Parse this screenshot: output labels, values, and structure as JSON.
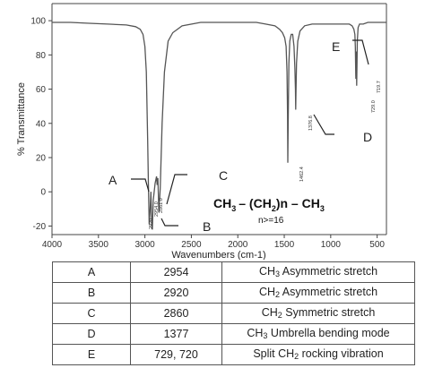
{
  "chart_data": {
    "type": "line",
    "xlabel": "Wavenumbers (cm-1)",
    "ylabel": "% Transmittance",
    "xlim": [
      4000,
      400
    ],
    "ylim": [
      -25,
      110
    ],
    "x_reversed": true,
    "x_ticks": [
      4000,
      3500,
      3000,
      2500,
      2000,
      1500,
      1000,
      500
    ],
    "y_ticks": [
      -20,
      0,
      20,
      40,
      60,
      80,
      100
    ],
    "grid": false,
    "series": [
      {
        "x": [
          4000,
          3800,
          3600,
          3400,
          3200,
          3100,
          3050,
          3020,
          3000,
          2985,
          2970,
          2962,
          2954,
          2945,
          2935,
          2925,
          2920,
          2910,
          2890,
          2875,
          2868,
          2860,
          2850,
          2835,
          2815,
          2790,
          2750,
          2700,
          2600,
          2400,
          2200,
          2000,
          1800,
          1700,
          1600,
          1550,
          1520,
          1495,
          1480,
          1470,
          1465,
          1462,
          1458,
          1450,
          1440,
          1425,
          1410,
          1395,
          1385,
          1380,
          1377,
          1374,
          1368,
          1355,
          1330,
          1280,
          1200,
          1100,
          1000,
          900,
          850,
          800,
          770,
          750,
          740,
          735,
          730,
          729,
          727,
          725,
          722,
          720,
          717,
          714,
          705,
          690,
          650,
          600,
          550,
          500,
          450,
          400
        ],
        "y": [
          99,
          99,
          98.5,
          98,
          97.5,
          96.5,
          95,
          92,
          85,
          70,
          30,
          5,
          -19,
          -12,
          0,
          -21,
          -22,
          -5,
          5,
          9,
          4,
          8,
          -12,
          2,
          40,
          70,
          88,
          93,
          97,
          99,
          99,
          99,
          99,
          98,
          97,
          95,
          93,
          90,
          85,
          70,
          45,
          17,
          40,
          75,
          88,
          92,
          92,
          85,
          72,
          60,
          48,
          58,
          75,
          88,
          94,
          97,
          98,
          98,
          98,
          98,
          98,
          98,
          97,
          95,
          92,
          85,
          68,
          66,
          75,
          82,
          75,
          62,
          76,
          88,
          96,
          98,
          98,
          99,
          99,
          99,
          99,
          99
        ]
      }
    ],
    "annotations": [
      "A",
      "B",
      "C",
      "D",
      "E"
    ],
    "peak_labels": [
      "2954.0",
      "2920",
      "2861.0",
      "1462.4",
      "1376.8",
      "729.0",
      "719.7"
    ]
  },
  "formula": {
    "ch": "CH",
    "ch_sub": "3",
    "dash1": "– (CH",
    "ch2_sub": "2",
    "mid": ")n – CH",
    "end_sub": "3"
  },
  "formula_note": "n>=16",
  "table": {
    "rows": [
      {
        "label": "A",
        "wavenumber": "2954",
        "pre": "CH",
        "sub": "3",
        "post": " Asymmetric stretch"
      },
      {
        "label": "B",
        "wavenumber": "2920",
        "pre": "CH",
        "sub": "2",
        "post": " Asymmetric stretch"
      },
      {
        "label": "C",
        "wavenumber": "2860",
        "pre": "CH",
        "sub": "2",
        "post": " Symmetric stretch"
      },
      {
        "label": "D",
        "wavenumber": "1377",
        "pre": "CH",
        "sub": "3",
        "post": " Umbrella bending mode"
      },
      {
        "label": "E",
        "wavenumber": "729, 720",
        "pre": "Split CH",
        "sub": "2",
        "post": " rocking vibration"
      }
    ]
  }
}
